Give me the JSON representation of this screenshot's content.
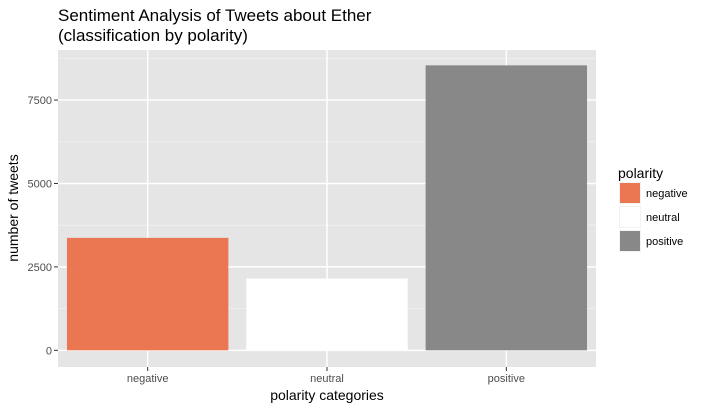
{
  "chart_data": {
    "type": "bar",
    "title": [
      "Sentiment Analysis of Tweets about Ether",
      "(classification by polarity)"
    ],
    "xlabel": "polarity categories",
    "ylabel": "number of tweets",
    "categories": [
      "negative",
      "neutral",
      "positive"
    ],
    "values": [
      3370,
      2150,
      8540
    ],
    "colors": [
      "#eb7752",
      "#ffffff",
      "#888888"
    ],
    "ylim": [
      -500,
      9000
    ],
    "yticks": [
      0,
      2500,
      5000,
      7500
    ],
    "yminor": [
      1250,
      3750,
      6250,
      8750
    ],
    "ytick_labels": [
      "0",
      "2500",
      "5000",
      "7500"
    ],
    "grid": true,
    "panel_background": "#e5e5e5",
    "legend": {
      "title": "polarity",
      "position": "right",
      "entries": [
        {
          "label": "negative",
          "color": "#eb7752"
        },
        {
          "label": "neutral",
          "color": "#ffffff"
        },
        {
          "label": "positive",
          "color": "#888888"
        }
      ]
    }
  }
}
